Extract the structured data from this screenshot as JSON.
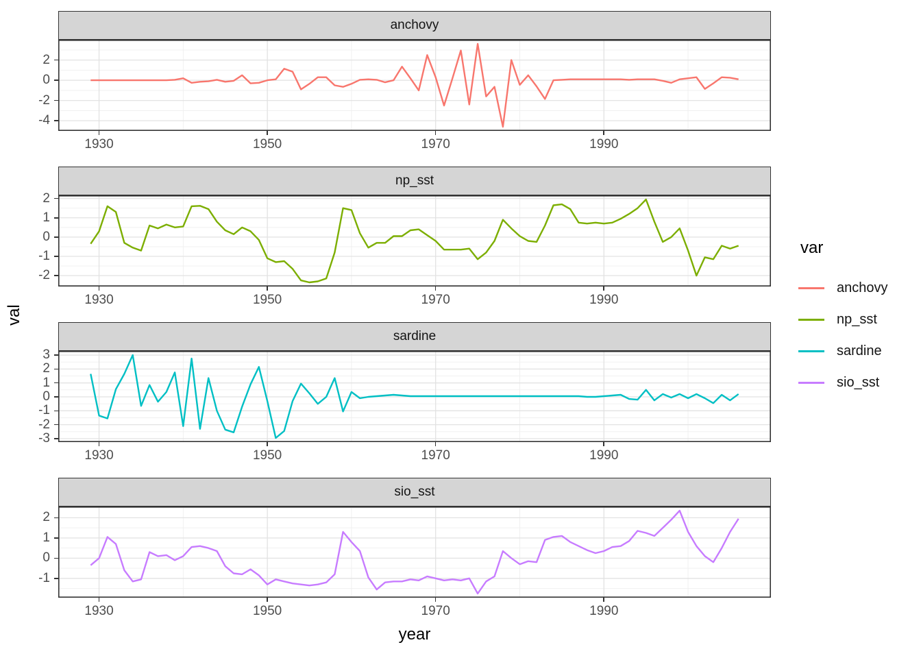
{
  "axes": {
    "x_label": "year",
    "y_label": "val",
    "x_tick_labels": [
      "1930",
      "1950",
      "1970",
      "1990"
    ]
  },
  "legend": {
    "title": "var",
    "items": [
      {
        "label": "anchovy",
        "color": "#F8766D"
      },
      {
        "label": "np_sst",
        "color": "#7CAE00"
      },
      {
        "label": "sardine",
        "color": "#00BFC4"
      },
      {
        "label": "sio_sst",
        "color": "#C77CFF"
      }
    ]
  },
  "chart_data": {
    "type": "line",
    "faceted": true,
    "xlabel": "year",
    "ylabel": "val",
    "grid": true,
    "legend_position": "right",
    "x_range": [
      1929,
      2006
    ],
    "x_major": [
      1930,
      1950,
      1970,
      1990
    ],
    "x_minor": [
      1940,
      1960,
      1980,
      2000
    ],
    "x": [
      1929,
      1930,
      1931,
      1932,
      1933,
      1934,
      1935,
      1936,
      1937,
      1938,
      1939,
      1940,
      1941,
      1942,
      1943,
      1944,
      1945,
      1946,
      1947,
      1948,
      1949,
      1950,
      1951,
      1952,
      1953,
      1954,
      1955,
      1956,
      1957,
      1958,
      1959,
      1960,
      1961,
      1962,
      1963,
      1964,
      1965,
      1966,
      1967,
      1968,
      1969,
      1970,
      1971,
      1972,
      1973,
      1974,
      1975,
      1976,
      1977,
      1978,
      1979,
      1980,
      1981,
      1982,
      1983,
      1984,
      1985,
      1986,
      1987,
      1988,
      1989,
      1990,
      1991,
      1992,
      1993,
      1994,
      1995,
      1996,
      1997,
      1998,
      1999,
      2000,
      2001,
      2002,
      2003,
      2004,
      2005,
      2006
    ],
    "facets": [
      {
        "title": "anchovy",
        "y_major": [
          2,
          0,
          -2,
          -4
        ],
        "y_tick_labels": [
          "2",
          "0",
          "-2",
          "-4"
        ],
        "y_minor": [
          3,
          1,
          -1,
          -3,
          -5
        ]
      },
      {
        "title": "np_sst",
        "y_major": [
          2,
          1,
          0,
          -1,
          -2
        ],
        "y_tick_labels": [
          "2",
          "1",
          "0",
          "-1",
          "-2"
        ],
        "y_minor": [
          1.5,
          0.5,
          -0.5,
          -1.5,
          -2.5
        ]
      },
      {
        "title": "sardine",
        "y_major": [
          3,
          2,
          1,
          0,
          -1,
          -2,
          -3
        ],
        "y_tick_labels": [
          "3",
          "2",
          "1",
          "0",
          "-1",
          "-2",
          "-3"
        ],
        "y_minor": [
          2.5,
          1.5,
          0.5,
          -0.5,
          -1.5,
          -2.5
        ]
      },
      {
        "title": "sio_sst",
        "y_major": [
          2,
          1,
          0,
          -1
        ],
        "y_tick_labels": [
          "2",
          "1",
          "0",
          "-1"
        ],
        "y_minor": [
          2.5,
          1.5,
          0.5,
          -0.5,
          -1.5
        ]
      }
    ],
    "series": [
      {
        "name": "anchovy",
        "values": [
          0,
          0,
          0,
          0,
          0,
          0,
          0,
          0,
          0,
          0,
          0.05,
          0.2,
          -0.25,
          -0.15,
          -0.1,
          0.05,
          -0.15,
          -0.05,
          0.5,
          -0.3,
          -0.25,
          0,
          0.1,
          1.15,
          0.85,
          -0.9,
          -0.35,
          0.3,
          0.3,
          -0.5,
          -0.65,
          -0.35,
          0.05,
          0.1,
          0.05,
          -0.2,
          0,
          1.35,
          0.2,
          -1.0,
          2.5,
          0.3,
          -2.5,
          0.2,
          2.95,
          -2.4,
          3.6,
          -1.6,
          -0.65,
          -4.6,
          2.0,
          -0.45,
          0.5,
          -0.6,
          -1.85,
          0,
          0.05,
          0.1,
          0.1,
          0.1,
          0.1,
          0.1,
          0.1,
          0.1,
          0.05,
          0.1,
          0.1,
          0.1,
          -0.05,
          -0.25,
          0.1,
          0.2,
          0.3,
          -0.85,
          -0.3,
          0.3,
          0.25,
          0.1
        ]
      },
      {
        "name": "np_sst",
        "values": [
          -0.35,
          0.3,
          1.6,
          1.3,
          -0.3,
          -0.55,
          -0.7,
          0.6,
          0.45,
          0.65,
          0.5,
          0.55,
          1.6,
          1.62,
          1.45,
          0.8,
          0.35,
          0.15,
          0.5,
          0.3,
          -0.15,
          -1.1,
          -1.3,
          -1.25,
          -1.65,
          -2.25,
          -2.35,
          -2.3,
          -2.15,
          -0.8,
          1.5,
          1.4,
          0.2,
          -0.55,
          -0.3,
          -0.3,
          0.05,
          0.05,
          0.35,
          0.4,
          0.1,
          -0.2,
          -0.65,
          -0.65,
          -0.65,
          -0.6,
          -1.15,
          -0.8,
          -0.2,
          0.9,
          0.45,
          0.05,
          -0.2,
          -0.25,
          0.6,
          1.65,
          1.7,
          1.45,
          0.75,
          0.7,
          0.75,
          0.7,
          0.75,
          0.95,
          1.2,
          1.5,
          1.95,
          0.8,
          -0.25,
          0,
          0.45,
          -0.7,
          -2.0,
          -1.05,
          -1.15,
          -0.45,
          -0.6,
          -0.45
        ]
      },
      {
        "name": "sardine",
        "values": [
          1.65,
          -1.35,
          -1.55,
          0.55,
          1.65,
          3.0,
          -0.65,
          0.85,
          -0.35,
          0.35,
          1.75,
          -2.1,
          2.75,
          -2.3,
          1.35,
          -1.0,
          -2.35,
          -2.55,
          -0.7,
          0.9,
          2.15,
          -0.3,
          -2.95,
          -2.45,
          -0.3,
          0.95,
          0.25,
          -0.5,
          0,
          1.35,
          -1.05,
          0.35,
          -0.1,
          0,
          0.05,
          0.1,
          0.15,
          0.1,
          0.05,
          0.05,
          0.05,
          0.05,
          0.05,
          0.05,
          0.05,
          0.05,
          0.05,
          0.05,
          0.05,
          0.05,
          0.05,
          0.05,
          0.05,
          0.05,
          0.05,
          0.05,
          0.05,
          0.05,
          0.05,
          0,
          0,
          0.05,
          0.1,
          0.15,
          -0.15,
          -0.2,
          0.5,
          -0.25,
          0.2,
          -0.05,
          0.2,
          -0.1,
          0.2,
          -0.1,
          -0.45,
          0.15,
          -0.25,
          0.2
        ]
      },
      {
        "name": "sio_sst",
        "values": [
          -0.35,
          0,
          1.05,
          0.7,
          -0.6,
          -1.15,
          -1.05,
          0.3,
          0.1,
          0.15,
          -0.1,
          0.1,
          0.55,
          0.6,
          0.5,
          0.35,
          -0.4,
          -0.75,
          -0.8,
          -0.55,
          -0.85,
          -1.3,
          -1.05,
          -1.15,
          -1.25,
          -1.3,
          -1.35,
          -1.3,
          -1.2,
          -0.8,
          1.3,
          0.8,
          0.35,
          -0.95,
          -1.55,
          -1.2,
          -1.15,
          -1.15,
          -1.05,
          -1.1,
          -0.9,
          -1.0,
          -1.1,
          -1.05,
          -1.1,
          -1.0,
          -1.75,
          -1.15,
          -0.9,
          0.35,
          0,
          -0.3,
          -0.15,
          -0.2,
          0.9,
          1.05,
          1.1,
          0.8,
          0.6,
          0.4,
          0.25,
          0.35,
          0.55,
          0.6,
          0.85,
          1.35,
          1.25,
          1.1,
          1.5,
          1.9,
          2.35,
          1.3,
          0.6,
          0.1,
          -0.2,
          0.5,
          1.3,
          1.95
        ]
      }
    ]
  }
}
